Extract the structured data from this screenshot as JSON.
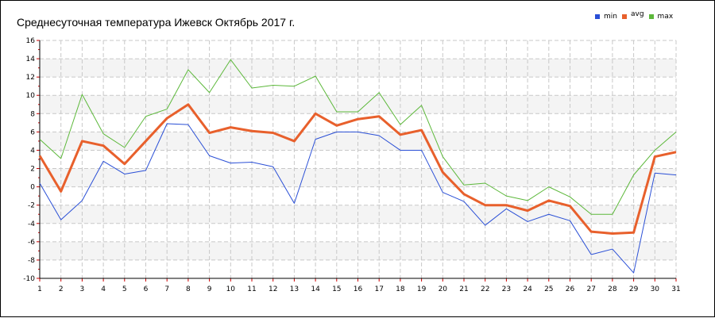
{
  "chart_data": {
    "type": "line",
    "title": "Среднесуточная температура Ижевск  Октябрь 2017 г.",
    "xlabel": "",
    "ylabel": "",
    "x": [
      1,
      2,
      3,
      4,
      5,
      6,
      7,
      8,
      9,
      10,
      11,
      12,
      13,
      14,
      15,
      16,
      17,
      18,
      19,
      20,
      21,
      22,
      23,
      24,
      25,
      26,
      27,
      28,
      29,
      30,
      31
    ],
    "xlim": [
      1,
      31
    ],
    "ylim": [
      -10,
      16
    ],
    "y_ticks": [
      16,
      14,
      12,
      10,
      8,
      6,
      4,
      2,
      0,
      -2,
      -4,
      -6,
      -8,
      -10
    ],
    "x_ticks": [
      "1",
      "2",
      "3",
      "4",
      "5",
      "6",
      "7",
      "8",
      "9",
      "10",
      "11",
      "12",
      "13",
      "14",
      "15",
      "16",
      "17",
      "18",
      "19",
      "20",
      "21",
      "22",
      "23",
      "24",
      "25",
      "26",
      "27",
      "28",
      "29",
      "30",
      "31"
    ],
    "grid": true,
    "legend_position": "top-right",
    "series": [
      {
        "name": "min",
        "color": "#2a4fd6",
        "values": [
          0.4,
          -3.6,
          -1.5,
          2.8,
          1.4,
          1.8,
          6.9,
          6.8,
          3.4,
          2.6,
          2.7,
          2.2,
          -1.8,
          5.2,
          6.0,
          6.0,
          5.6,
          4.0,
          4.0,
          -0.6,
          -1.6,
          -4.2,
          -2.4,
          -3.8,
          -3.0,
          -3.7,
          -7.4,
          -6.8,
          -9.4,
          1.5,
          1.3
        ]
      },
      {
        "name": "avg",
        "color": "#e8602c",
        "values": [
          3.4,
          -0.5,
          5.0,
          4.5,
          2.5,
          5.0,
          7.5,
          9.0,
          5.9,
          6.5,
          6.1,
          5.9,
          5.0,
          8.0,
          6.7,
          7.4,
          7.7,
          5.7,
          6.2,
          1.6,
          -0.8,
          -2.0,
          -2.0,
          -2.6,
          -1.5,
          -2.1,
          -4.9,
          -5.1,
          -5.0,
          3.3,
          3.8
        ]
      },
      {
        "name": "max",
        "color": "#5cb83a",
        "values": [
          5.2,
          3.1,
          10.1,
          5.8,
          4.3,
          7.7,
          8.5,
          12.8,
          10.3,
          13.9,
          10.8,
          11.1,
          11.0,
          12.1,
          8.2,
          8.2,
          10.3,
          6.8,
          8.9,
          3.3,
          0.2,
          0.4,
          -1.0,
          -1.5,
          0.0,
          -1.1,
          -3.0,
          -3.0,
          1.3,
          4.0,
          6.0
        ]
      }
    ]
  }
}
